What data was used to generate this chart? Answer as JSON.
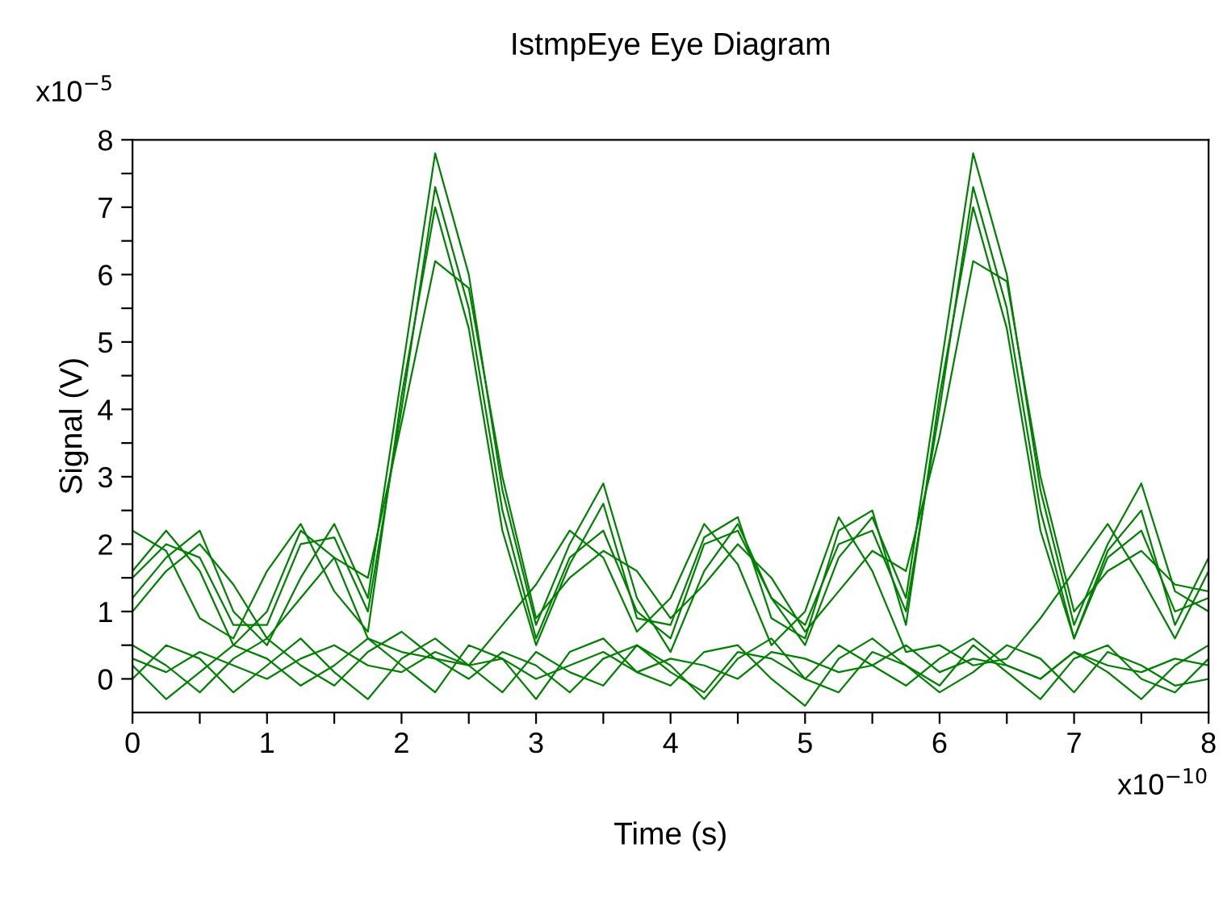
{
  "chart_data": {
    "type": "line",
    "title": "IstmpEye Eye Diagram",
    "xlabel": "Time (s)",
    "ylabel": "Signal (V)",
    "annotations": [
      "x10$^{−5}$",
      "x10$^{−10}$"
    ],
    "x": [
      0,
      0.25,
      0.5,
      0.75,
      1,
      1.25,
      1.5,
      1.75,
      2,
      2.25,
      2.5,
      2.75,
      3,
      3.25,
      3.5,
      3.75,
      4,
      4.25,
      4.5,
      4.75,
      5,
      5.25,
      5.5,
      5.75,
      6,
      6.25,
      6.5,
      6.75,
      7,
      7.25,
      7.5,
      7.75,
      8
    ],
    "xlim": [
      0,
      8
    ],
    "xticks": [
      0,
      {
        "value": 0.5,
        "label": null
      },
      1,
      {
        "value": 1.5,
        "label": null
      },
      2,
      {
        "value": 2.5,
        "label": null
      },
      3,
      {
        "value": 3.5,
        "label": null
      },
      4,
      {
        "value": 4.5,
        "label": null
      },
      5,
      {
        "value": 5.5,
        "label": null
      },
      6,
      {
        "value": 6.5,
        "label": null
      },
      7,
      {
        "value": 7.5,
        "label": null
      },
      8
    ],
    "ylim": [
      -0.5,
      8
    ],
    "yticks": [
      0,
      {
        "value": 0.5,
        "label": null
      },
      1,
      {
        "value": 1.5,
        "label": null
      },
      2,
      {
        "value": 2.5,
        "label": null
      },
      3,
      {
        "value": 3.5,
        "label": null
      },
      4,
      {
        "value": 4.5,
        "label": null
      },
      5,
      {
        "value": 5.5,
        "label": null
      },
      6,
      {
        "value": 6.5,
        "label": null
      },
      7,
      {
        "value": 7.5,
        "label": null
      },
      8
    ],
    "grid": false,
    "legend": false,
    "marker": "none",
    "line_style": "solid",
    "series": [
      {
        "color": "#008000",
        "values": [
          1.5,
          2.0,
          1.8,
          0.8,
          0.8,
          2.0,
          2.1,
          1.0,
          4.0,
          7.3,
          5.5,
          2.5,
          0.6,
          1.8,
          2.2,
          1.0,
          0.6,
          2.0,
          2.2,
          1.2,
          0.8,
          2.0,
          2.2,
          1.0,
          4.0,
          7.3,
          5.5,
          2.5,
          0.6,
          1.8,
          2.2,
          1.0,
          1.2
        ]
      },
      {
        "color": "#008000",
        "values": [
          0.3,
          0.1,
          0.4,
          0.2,
          0.0,
          0.3,
          0.5,
          0.2,
          0.1,
          0.4,
          0.2,
          0.3,
          0.0,
          0.2,
          0.4,
          0.1,
          0.3,
          0.2,
          0.0,
          0.4,
          0.3,
          0.1,
          0.2,
          0.5,
          0.1,
          0.3,
          0.2,
          0.0,
          0.4,
          0.2,
          0.1,
          0.3,
          0.2
        ]
      },
      {
        "color": "#008000",
        "values": [
          1.2,
          1.8,
          2.2,
          1.0,
          0.5,
          1.5,
          2.3,
          1.2,
          4.5,
          7.8,
          6.0,
          2.8,
          0.8,
          2.0,
          2.9,
          1.2,
          0.4,
          1.6,
          2.3,
          1.2,
          0.5,
          1.8,
          2.4,
          1.2,
          4.5,
          7.8,
          6.0,
          2.8,
          0.8,
          2.0,
          2.9,
          1.3,
          1.0
        ]
      },
      {
        "color": "#008000",
        "values": [
          0.0,
          0.5,
          0.3,
          -0.2,
          0.2,
          0.6,
          0.1,
          -0.3,
          0.3,
          0.6,
          0.2,
          -0.2,
          0.4,
          0.1,
          -0.1,
          0.5,
          0.2,
          -0.3,
          0.3,
          0.6,
          0.0,
          -0.2,
          0.4,
          0.2,
          -0.1,
          0.5,
          0.1,
          -0.3,
          0.3,
          0.5,
          0.0,
          -0.2,
          0.3
        ]
      },
      {
        "color": "#008000",
        "values": [
          1.0,
          1.6,
          2.0,
          1.4,
          0.6,
          1.2,
          1.8,
          1.5,
          3.8,
          6.2,
          5.8,
          3.0,
          0.9,
          1.5,
          1.9,
          1.6,
          0.9,
          1.4,
          2.0,
          1.5,
          0.7,
          1.3,
          1.9,
          1.6,
          3.6,
          6.2,
          5.9,
          3.0,
          1.0,
          1.6,
          1.9,
          1.4,
          1.3
        ]
      },
      {
        "color": "#008000",
        "values": [
          0.5,
          0.2,
          -0.2,
          0.3,
          0.6,
          0.2,
          -0.1,
          0.4,
          0.7,
          0.3,
          0.0,
          0.4,
          0.2,
          -0.2,
          0.3,
          0.5,
          0.1,
          -0.2,
          0.4,
          0.3,
          0.0,
          0.5,
          0.2,
          -0.1,
          0.3,
          0.6,
          0.2,
          0.0,
          0.4,
          0.1,
          -0.3,
          0.2,
          0.5
        ]
      },
      {
        "color": "#008000",
        "values": [
          1.6,
          2.2,
          1.6,
          0.5,
          1.0,
          2.2,
          1.8,
          0.6,
          0.4,
          0.3,
          0.2,
          0.8,
          1.4,
          2.2,
          1.8,
          0.7,
          1.2,
          2.3,
          1.7,
          0.5,
          1.0,
          2.4,
          1.6,
          0.4,
          0.5,
          0.2,
          0.3,
          0.9,
          1.6,
          2.3,
          1.5,
          0.6,
          1.6
        ]
      },
      {
        "color": "#008000",
        "values": [
          2.2,
          1.9,
          0.9,
          0.6,
          1.6,
          2.3,
          1.3,
          0.7,
          4.2,
          7.0,
          5.2,
          2.2,
          0.5,
          1.7,
          2.6,
          0.9,
          0.8,
          2.1,
          2.4,
          0.9,
          0.6,
          2.2,
          2.5,
          0.8,
          4.2,
          7.0,
          5.2,
          2.2,
          0.6,
          1.9,
          2.5,
          0.8,
          1.8
        ]
      },
      {
        "color": "#008000",
        "values": [
          0.2,
          -0.3,
          0.1,
          0.5,
          0.3,
          -0.1,
          0.2,
          0.6,
          0.2,
          -0.2,
          0.5,
          0.3,
          -0.3,
          0.4,
          0.6,
          0.1,
          -0.1,
          0.4,
          0.5,
          0.0,
          -0.4,
          0.3,
          0.6,
          0.2,
          -0.2,
          0.1,
          0.5,
          0.3,
          -0.2,
          0.4,
          0.2,
          -0.1,
          0.0
        ]
      }
    ]
  }
}
